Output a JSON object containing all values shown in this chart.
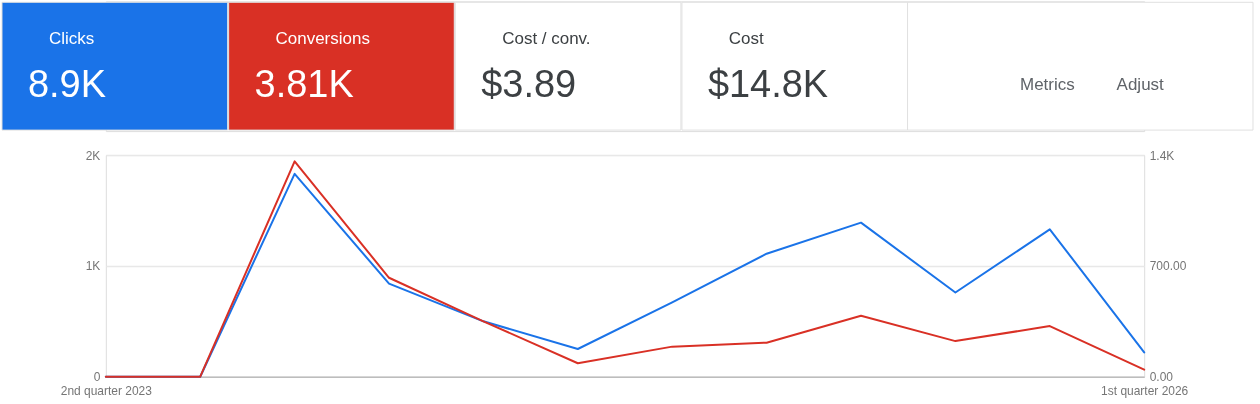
{
  "chart_data": [
    {
      "type": "other",
      "categories": [
        "Clicks",
        "Conversions",
        "Cost / conv.",
        "Cost"
      ],
      "value_labels": [
        "8.9K",
        "3.81K",
        "$3.89",
        "$14.8K"
      ],
      "colors": [
        "#1a73e8",
        "#d93025",
        "#ffffff",
        "#ffffff"
      ],
      "annotations": [
        "Metrics",
        "Adjust"
      ]
    },
    {
      "type": "line",
      "categories": [
        "2nd quarter 2023",
        null,
        null,
        null,
        null,
        null,
        null,
        null,
        null,
        null,
        null,
        "1st quarter 2026"
      ],
      "series": [
        {
          "color": "#1a73e8",
          "values": [
            0,
            0,
            1830,
            840,
            500,
            250,
            670,
            1110,
            1390,
            760,
            1330,
            220
          ]
        },
        {
          "color": "#d93025",
          "axis": "y2",
          "values": [
            0,
            0,
            1360,
            625,
            350,
            85,
            190,
            215,
            385,
            225,
            320,
            45
          ]
        }
      ],
      "ylim": [
        0,
        2000
      ],
      "yticks": [
        0,
        {
          "value": 1000,
          "label": "1K"
        },
        {
          "value": 2000,
          "label": "2K"
        }
      ],
      "y2lim": [
        0,
        1400
      ],
      "y2ticks": [
        {
          "value": 0,
          "label": "0.00"
        },
        {
          "value": 700,
          "label": "700.00"
        },
        {
          "value": 1400,
          "label": "1.4K"
        }
      ],
      "grid": "y"
    }
  ]
}
